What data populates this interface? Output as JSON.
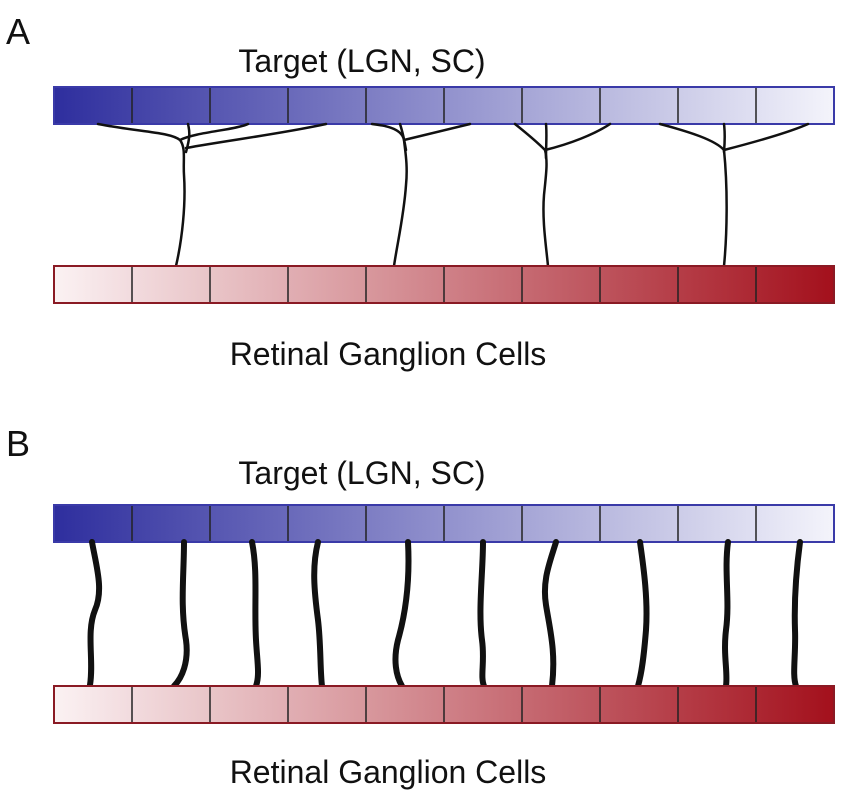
{
  "panels": [
    {
      "letter": "A",
      "target_label": "Target (LGN, SC)",
      "rgc_label": "Retinal Ganglion Cells",
      "projection": "diffuse branching"
    },
    {
      "letter": "B",
      "target_label": "Target (LGN, SC)",
      "rgc_label": "Retinal Ganglion Cells",
      "projection": "one-to-one"
    }
  ],
  "colors": {
    "target_start": "#2e2e9e",
    "target_end": "#f4f4fb",
    "rgc_start": "#fbf2f3",
    "rgc_end": "#a3101c",
    "axon": "#111111"
  },
  "cells_per_row": 10
}
